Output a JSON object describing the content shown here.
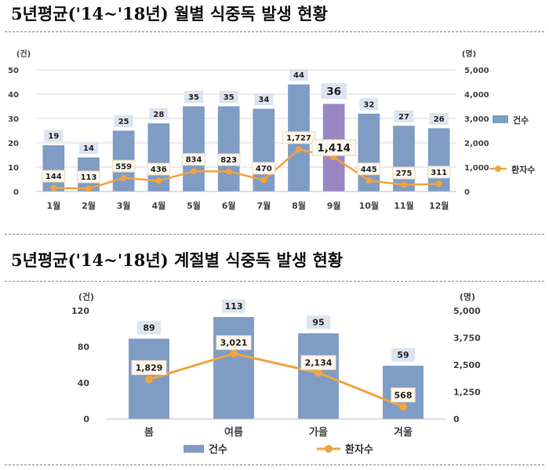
{
  "titles": {
    "monthly": "5년평균('14~'18년) 월별 식중독 발생 현황",
    "seasonal": "5년평균('14~'18년) 계절별 식중독 발생 현황"
  },
  "colors": {
    "bar": "#7f9cc4",
    "bar_highlight": "#9b86c4",
    "line": "#f0a440",
    "label_bg": "#dde3ef",
    "axis_text": "#444444"
  },
  "chart_data": [
    {
      "type": "bar",
      "title": "5년평균('14~'18년) 월별 식중독 발생 현황",
      "categories": [
        "1월",
        "2월",
        "3월",
        "4월",
        "5월",
        "6월",
        "7월",
        "8월",
        "9월",
        "10월",
        "11월",
        "12월"
      ],
      "series": [
        {
          "name": "건수",
          "type": "bar",
          "axis": "left",
          "values": [
            19,
            14,
            25,
            28,
            35,
            35,
            34,
            44,
            36,
            32,
            27,
            26
          ],
          "highlight_index": 8
        },
        {
          "name": "환자수",
          "type": "line",
          "axis": "right",
          "values": [
            144,
            113,
            559,
            436,
            834,
            823,
            470,
            1727,
            1414,
            445,
            275,
            311
          ],
          "value_labels": [
            "144",
            "113",
            "559",
            "436",
            "834",
            "823",
            "470",
            "1,727",
            "1,414",
            "445",
            "275",
            "311"
          ]
        }
      ],
      "y_left": {
        "unit": "(건)",
        "range": [
          0,
          50
        ],
        "ticks": [
          "0",
          "10",
          "20",
          "30",
          "40",
          "50"
        ]
      },
      "y_right": {
        "unit": "(명)",
        "range": [
          0,
          5000
        ],
        "ticks": [
          "0",
          "1,000",
          "2,000",
          "3,000",
          "4,000",
          "5,000"
        ]
      },
      "legend": {
        "position": "right",
        "entries": [
          "건수",
          "환자수"
        ]
      },
      "grid": true
    },
    {
      "type": "bar",
      "title": "5년평균('14~'18년) 계절별 식중독 발생 현황",
      "categories": [
        "봄",
        "여름",
        "가을",
        "겨울"
      ],
      "series": [
        {
          "name": "건수",
          "type": "bar",
          "axis": "left",
          "values": [
            89,
            113,
            95,
            59
          ]
        },
        {
          "name": "환자수",
          "type": "line",
          "axis": "right",
          "values": [
            1829,
            3021,
            2134,
            568
          ],
          "value_labels": [
            "1,829",
            "3,021",
            "2,134",
            "568"
          ]
        }
      ],
      "y_left": {
        "unit": "(건)",
        "range": [
          0,
          120
        ],
        "ticks": [
          "0",
          "40",
          "80",
          "120"
        ]
      },
      "y_right": {
        "unit": "(명)",
        "range": [
          0,
          5000
        ],
        "ticks": [
          "0",
          "1,250",
          "2,500",
          "3,750",
          "5,000"
        ]
      },
      "legend": {
        "position": "bottom",
        "entries": [
          "건수",
          "환자수"
        ]
      },
      "grid": false
    }
  ]
}
